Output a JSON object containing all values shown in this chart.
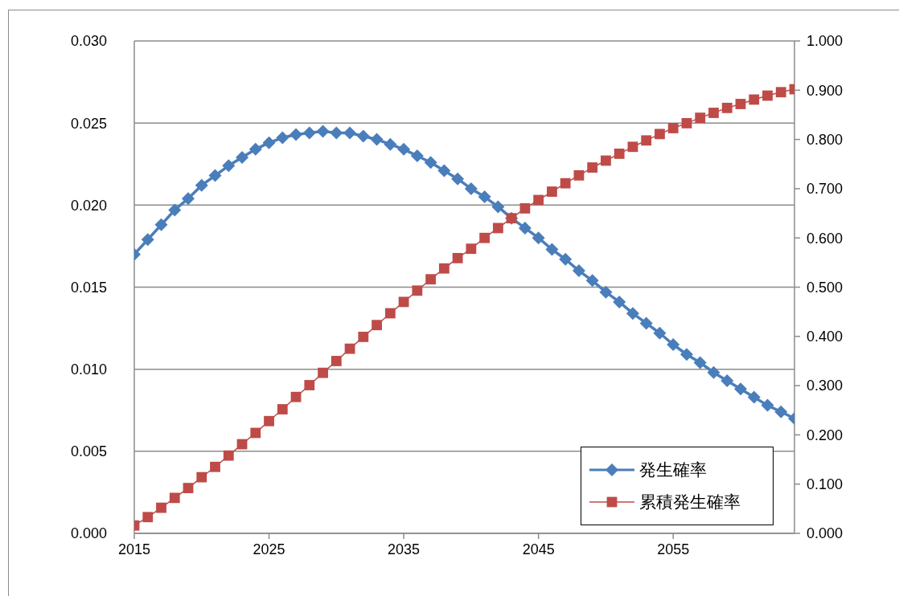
{
  "chart_data": {
    "type": "line",
    "x": [
      2015,
      2016,
      2017,
      2018,
      2019,
      2020,
      2021,
      2022,
      2023,
      2024,
      2025,
      2026,
      2027,
      2028,
      2029,
      2030,
      2031,
      2032,
      2033,
      2034,
      2035,
      2036,
      2037,
      2038,
      2039,
      2040,
      2041,
      2042,
      2043,
      2044,
      2045,
      2046,
      2047,
      2048,
      2049,
      2050,
      2051,
      2052,
      2053,
      2054,
      2055,
      2056,
      2057,
      2058,
      2059,
      2060,
      2061,
      2062,
      2063,
      2064
    ],
    "series": [
      {
        "name": "発生確率",
        "color": "#4a7ebb",
        "marker": "diamond",
        "axis": "y",
        "values": [
          0.017,
          0.0179,
          0.0188,
          0.0197,
          0.0204,
          0.0212,
          0.0218,
          0.0224,
          0.0229,
          0.0234,
          0.0238,
          0.0241,
          0.0243,
          0.0244,
          0.0245,
          0.0244,
          0.0244,
          0.0242,
          0.024,
          0.0237,
          0.0234,
          0.023,
          0.0226,
          0.0221,
          0.0216,
          0.021,
          0.0205,
          0.0199,
          0.0192,
          0.0186,
          0.018,
          0.0173,
          0.0167,
          0.016,
          0.0154,
          0.0147,
          0.0141,
          0.0134,
          0.0128,
          0.0122,
          0.0115,
          0.0109,
          0.0104,
          0.0098,
          0.0093,
          0.0088,
          0.0083,
          0.0078,
          0.0074,
          0.007
        ]
      },
      {
        "name": "累積発生確率",
        "color": "#be4b48",
        "marker": "square",
        "axis": "y2",
        "values": [
          0.016,
          0.033,
          0.052,
          0.072,
          0.092,
          0.114,
          0.135,
          0.158,
          0.181,
          0.204,
          0.228,
          0.252,
          0.277,
          0.301,
          0.326,
          0.35,
          0.375,
          0.399,
          0.423,
          0.447,
          0.47,
          0.493,
          0.516,
          0.538,
          0.559,
          0.578,
          0.6,
          0.62,
          0.64,
          0.66,
          0.677,
          0.694,
          0.711,
          0.727,
          0.743,
          0.757,
          0.771,
          0.785,
          0.798,
          0.811,
          0.823,
          0.833,
          0.844,
          0.854,
          0.864,
          0.872,
          0.881,
          0.889,
          0.896,
          0.902
        ]
      }
    ],
    "xlim": [
      2015,
      2064
    ],
    "xticks": [
      2015,
      2025,
      2035,
      2045,
      2055
    ],
    "ylim": [
      0,
      0.03
    ],
    "yticks": [
      {
        "value": 0,
        "label": "0.000"
      },
      {
        "value": 0.005,
        "label": "0.005"
      },
      {
        "value": 0.01,
        "label": "0.010"
      },
      {
        "value": 0.015,
        "label": "0.015"
      },
      {
        "value": 0.02,
        "label": "0.020"
      },
      {
        "value": 0.025,
        "label": "0.025"
      },
      {
        "value": 0.03,
        "label": "0.030"
      }
    ],
    "y2lim": [
      0,
      1
    ],
    "y2ticks": [
      {
        "value": 0,
        "label": "0.000"
      },
      {
        "value": 0.1,
        "label": "0.100"
      },
      {
        "value": 0.2,
        "label": "0.200"
      },
      {
        "value": 0.3,
        "label": "0.300"
      },
      {
        "value": 0.4,
        "label": "0.400"
      },
      {
        "value": 0.5,
        "label": "0.500"
      },
      {
        "value": 0.6,
        "label": "0.600"
      },
      {
        "value": 0.7,
        "label": "0.700"
      },
      {
        "value": 0.8,
        "label": "0.800"
      },
      {
        "value": 0.9,
        "label": "0.900"
      },
      {
        "value": 1,
        "label": "1.000"
      }
    ],
    "grid": "y",
    "legend": "bottom right",
    "line_style": "solid"
  }
}
